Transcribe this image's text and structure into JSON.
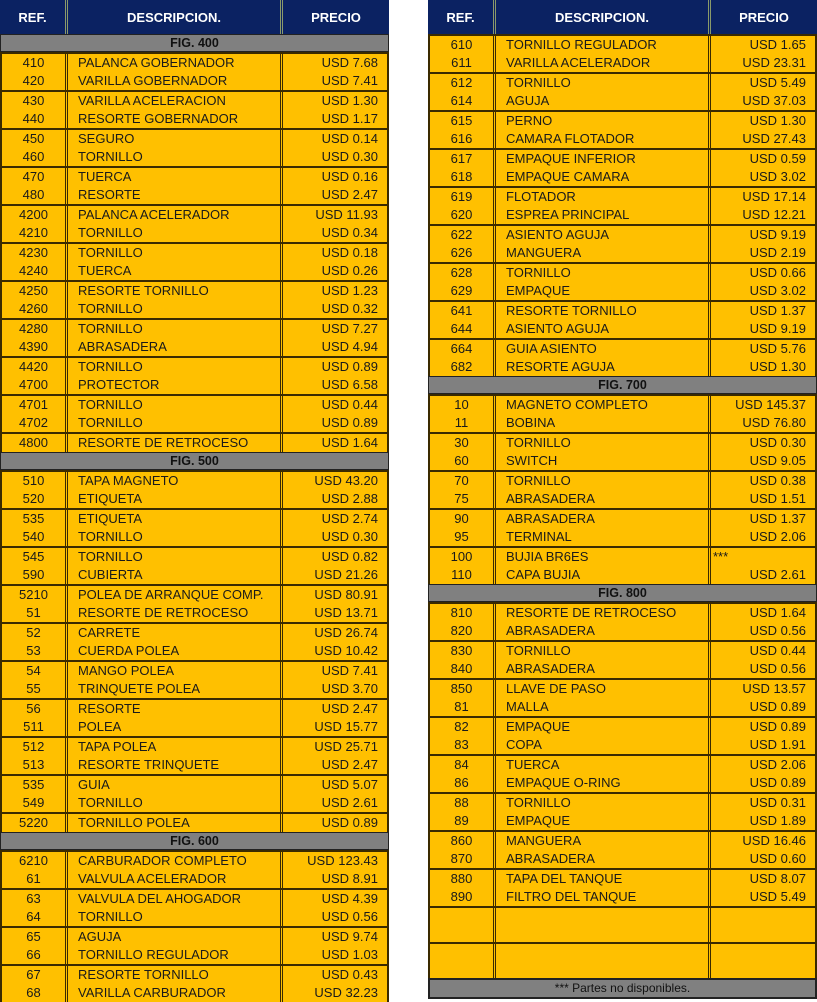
{
  "headers": {
    "ref": "REF.",
    "desc": "DESCRIPCION.",
    "price": "PRECIO"
  },
  "left": [
    {
      "title": "FIG. 400",
      "items": [
        [
          "410",
          "PALANCA GOBERNADOR",
          "USD 7.68"
        ],
        [
          "420",
          "VARILLA GOBERNADOR",
          "USD 7.41"
        ],
        [
          "430",
          "VARILLA ACELERACION",
          "USD 1.30"
        ],
        [
          "440",
          "RESORTE GOBERNADOR",
          "USD 1.17"
        ],
        [
          "450",
          "SEGURO",
          "USD 0.14"
        ],
        [
          "460",
          "TORNILLO",
          "USD 0.30"
        ],
        [
          "470",
          "TUERCA",
          "USD 0.16"
        ],
        [
          "480",
          "RESORTE",
          "USD 2.47"
        ],
        [
          "4200",
          "PALANCA ACELERADOR",
          "USD 11.93"
        ],
        [
          "4210",
          "TORNILLO",
          "USD 0.34"
        ],
        [
          "4230",
          "TORNILLO",
          "USD 0.18"
        ],
        [
          "4240",
          "TUERCA",
          "USD 0.26"
        ],
        [
          "4250",
          "RESORTE TORNILLO",
          "USD 1.23"
        ],
        [
          "4260",
          "TORNILLO",
          "USD 0.32"
        ],
        [
          "4280",
          "TORNILLO",
          "USD 7.27"
        ],
        [
          "4390",
          "ABRASADERA",
          "USD 4.94"
        ],
        [
          "4420",
          "TORNILLO",
          "USD 0.89"
        ],
        [
          "4700",
          "PROTECTOR",
          "USD 6.58"
        ],
        [
          "4701",
          "TORNILLO",
          "USD 0.44"
        ],
        [
          "4702",
          "TORNILLO",
          "USD 0.89"
        ],
        [
          "4800",
          "RESORTE DE RETROCESO",
          "USD 1.64"
        ]
      ]
    },
    {
      "title": "FIG. 500",
      "items": [
        [
          "510",
          "TAPA MAGNETO",
          "USD 43.20"
        ],
        [
          "520",
          "ETIQUETA",
          "USD 2.88"
        ],
        [
          "535",
          "ETIQUETA",
          "USD 2.74"
        ],
        [
          "540",
          "TORNILLO",
          "USD 0.30"
        ],
        [
          "545",
          "TORNILLO",
          "USD 0.82"
        ],
        [
          "590",
          "CUBIERTA",
          "USD 21.26"
        ],
        [
          "5210",
          "POLEA DE ARRANQUE COMP.",
          "USD 80.91"
        ],
        [
          "51",
          "RESORTE DE RETROCESO",
          "USD 13.71"
        ],
        [
          "52",
          "CARRETE",
          "USD 26.74"
        ],
        [
          "53",
          "CUERDA POLEA",
          "USD 10.42"
        ],
        [
          "54",
          "MANGO POLEA",
          "USD 7.41"
        ],
        [
          "55",
          "TRINQUETE POLEA",
          "USD 3.70"
        ],
        [
          "56",
          "RESORTE",
          "USD 2.47"
        ],
        [
          "511",
          "POLEA",
          "USD 15.77"
        ],
        [
          "512",
          "TAPA POLEA",
          "USD 25.71"
        ],
        [
          "513",
          "RESORTE TRINQUETE",
          "USD 2.47"
        ],
        [
          "535",
          "GUIA",
          "USD 5.07"
        ],
        [
          "549",
          "TORNILLO",
          "USD 2.61"
        ],
        [
          "5220",
          "TORNILLO POLEA",
          "USD 0.89"
        ]
      ]
    },
    {
      "title": "FIG. 600",
      "items": [
        [
          "6210",
          "CARBURADOR COMPLETO",
          "USD 123.43"
        ],
        [
          "61",
          "VALVULA ACELERADOR",
          "USD 8.91"
        ],
        [
          "63",
          "VALVULA  DEL AHOGADOR",
          "USD 4.39"
        ],
        [
          "64",
          "TORNILLO",
          "USD 0.56"
        ],
        [
          "65",
          "AGUJA",
          "USD 9.74"
        ],
        [
          "66",
          "TORNILLO REGULADOR",
          "USD 1.03"
        ],
        [
          "67",
          "RESORTE TORNILLO",
          "USD 0.43"
        ],
        [
          "68",
          "VARILLA CARBURADOR",
          "USD 32.23"
        ]
      ]
    }
  ],
  "right": [
    {
      "title": "",
      "items": [
        [
          "610",
          "TORNILLO REGULADOR",
          "USD 1.65"
        ],
        [
          "611",
          "VARILLA ACELERADOR",
          "USD 23.31"
        ],
        [
          "612",
          "TORNILLO",
          "USD 5.49"
        ],
        [
          "614",
          "AGUJA",
          "USD 37.03"
        ],
        [
          "615",
          "PERNO",
          "USD 1.30"
        ],
        [
          "616",
          "CAMARA FLOTADOR",
          "USD 27.43"
        ],
        [
          "617",
          "EMPAQUE INFERIOR",
          "USD 0.59"
        ],
        [
          "618",
          "EMPAQUE CAMARA",
          "USD 3.02"
        ],
        [
          "619",
          "FLOTADOR",
          "USD 17.14"
        ],
        [
          "620",
          "ESPREA PRINCIPAL",
          "USD 12.21"
        ],
        [
          "622",
          "ASIENTO AGUJA",
          "USD 9.19"
        ],
        [
          "626",
          "MANGUERA",
          "USD 2.19"
        ],
        [
          "628",
          "TORNILLO",
          "USD 0.66"
        ],
        [
          "629",
          "EMPAQUE",
          "USD 3.02"
        ],
        [
          "641",
          "RESORTE TORNILLO",
          "USD 1.37"
        ],
        [
          "644",
          "ASIENTO AGUJA",
          "USD 9.19"
        ],
        [
          "664",
          "GUIA ASIENTO",
          "USD 5.76"
        ],
        [
          "682",
          "RESORTE AGUJA",
          "USD 1.30"
        ]
      ]
    },
    {
      "title": "FIG. 700",
      "items": [
        [
          "10",
          "MAGNETO COMPLETO",
          "USD 145.37"
        ],
        [
          "11",
          "BOBINA",
          "USD 76.80"
        ],
        [
          "30",
          "TORNILLO",
          "USD 0.30"
        ],
        [
          "60",
          "SWITCH",
          "USD 9.05"
        ],
        [
          "70",
          "TORNILLO",
          "USD 0.38"
        ],
        [
          "75",
          "ABRASADERA",
          "USD 1.51"
        ],
        [
          "90",
          "ABRASADERA",
          "USD 1.37"
        ],
        [
          "95",
          "TERMINAL",
          "USD 2.06"
        ],
        [
          "100",
          "BUJIA BR6ES",
          "***"
        ],
        [
          "110",
          "CAPA BUJIA",
          "USD 2.61"
        ]
      ]
    },
    {
      "title": "FIG. 800",
      "items": [
        [
          "810",
          "RESORTE DE RETROCESO",
          "USD 1.64"
        ],
        [
          "820",
          "ABRASADERA",
          "USD 0.56"
        ],
        [
          "830",
          "TORNILLO",
          "USD 0.44"
        ],
        [
          "840",
          "ABRASADERA",
          "USD 0.56"
        ],
        [
          "850",
          "LLAVE DE PASO",
          "USD 13.57"
        ],
        [
          "81",
          "MALLA",
          "USD 0.89"
        ],
        [
          "82",
          "EMPAQUE",
          "USD 0.89"
        ],
        [
          "83",
          "COPA",
          "USD 1.91"
        ],
        [
          "84",
          "TUERCA",
          "USD 2.06"
        ],
        [
          "86",
          "EMPAQUE O-RING",
          "USD 0.89"
        ],
        [
          "88",
          "TORNILLO",
          "USD 0.31"
        ],
        [
          "89",
          "EMPAQUE",
          "USD 1.89"
        ],
        [
          "860",
          "MANGUERA",
          "USD 16.46"
        ],
        [
          "870",
          "ABRASADERA",
          "USD 0.60"
        ],
        [
          "880",
          "TAPA DEL TANQUE",
          "USD 8.07"
        ],
        [
          "890",
          "FILTRO DEL TANQUE",
          "USD 5.49"
        ]
      ]
    }
  ],
  "footnote": "*** Partes no disponibles.",
  "colors": {
    "header": "#0b2262",
    "row": "#FFC000",
    "section": "#808080"
  }
}
